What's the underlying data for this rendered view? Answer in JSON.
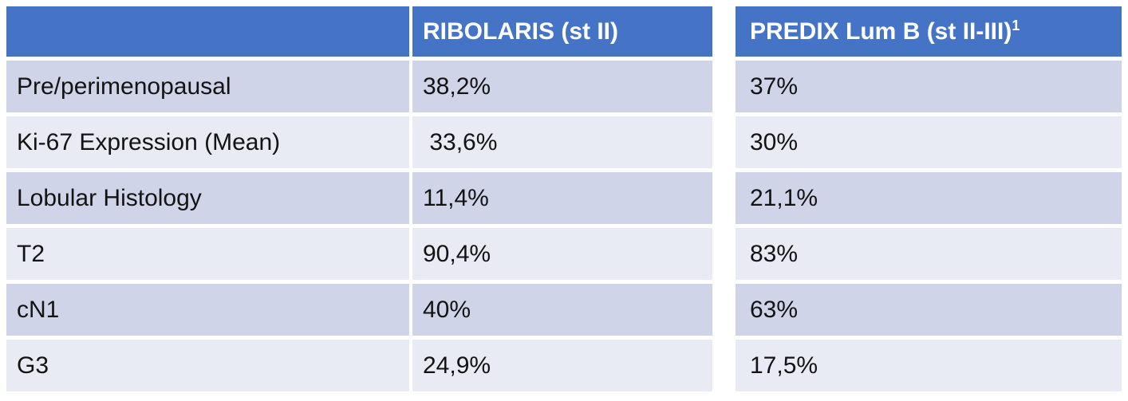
{
  "chart_data": {
    "type": "table",
    "title": "",
    "columns": [
      {
        "label": "",
        "sup": ""
      },
      {
        "label": "RIBOLARIS (st II)",
        "sup": ""
      },
      {
        "label": "PREDIX Lum B (st II-III)",
        "sup": "1"
      }
    ],
    "rows": [
      {
        "label": "Pre/perimenopausal",
        "values": [
          "38,2%",
          "37%"
        ]
      },
      {
        "label": "Ki-67 Expression (Mean)",
        "values": [
          " 33,6%",
          "30%"
        ]
      },
      {
        "label": "Lobular Histology",
        "values": [
          "11,4%",
          "21,1%"
        ]
      },
      {
        "label": "T2",
        "values": [
          "90,4%",
          "83%"
        ]
      },
      {
        "label": "cN1",
        "values": [
          "40%",
          "63%"
        ]
      },
      {
        "label": "G3",
        "values": [
          "24,9%",
          "17,5%"
        ]
      }
    ],
    "layout": {
      "banded_rows": true,
      "two_panels": true,
      "header_row": true
    }
  },
  "colors": {
    "header_bg": "#4574C6",
    "header_text": "#FFFFFF",
    "band_dark": "#CFD4E8",
    "band_light": "#E8EAF4",
    "body_text": "#131313",
    "background": "#FFFFFF"
  }
}
